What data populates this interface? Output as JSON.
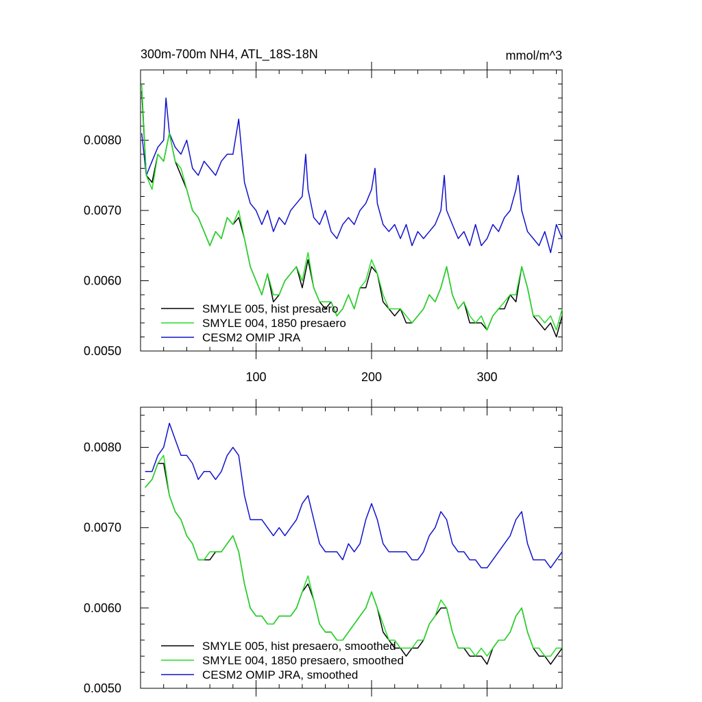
{
  "chart_data": [
    {
      "type": "line",
      "title": "300m-700m NH4, ATL_18S-18N",
      "units": "mmol/m^3",
      "xlim": [
        0,
        365
      ],
      "ylim": [
        0.005,
        0.009
      ],
      "xticks": [
        100,
        200,
        300
      ],
      "xtick_labels": [
        "100",
        "200",
        "300"
      ],
      "yticks": [
        0.005,
        0.006,
        0.007,
        0.008
      ],
      "ytick_labels": [
        "0.0050",
        "0.0060",
        "0.0070",
        "0.0080"
      ],
      "legend_position": "bottom-left",
      "series": [
        {
          "name": "SMYLE 005, hist presaero",
          "color": "#000000",
          "x": [
            1,
            5,
            10,
            15,
            20,
            25,
            30,
            35,
            40,
            45,
            50,
            55,
            60,
            65,
            70,
            75,
            80,
            85,
            90,
            95,
            100,
            105,
            110,
            115,
            120,
            125,
            130,
            135,
            140,
            145,
            150,
            155,
            160,
            165,
            170,
            175,
            180,
            185,
            190,
            195,
            200,
            205,
            210,
            215,
            220,
            225,
            230,
            235,
            240,
            245,
            250,
            255,
            260,
            265,
            270,
            275,
            280,
            285,
            290,
            295,
            300,
            305,
            310,
            315,
            320,
            325,
            330,
            335,
            340,
            345,
            350,
            355,
            360,
            365
          ],
          "values": [
            0.0087,
            0.0075,
            0.0074,
            0.0078,
            0.0077,
            0.0081,
            0.0077,
            0.0075,
            0.0073,
            0.007,
            0.0069,
            0.0067,
            0.0065,
            0.0067,
            0.0066,
            0.0069,
            0.0068,
            0.0069,
            0.0066,
            0.0062,
            0.006,
            0.0058,
            0.0061,
            0.0057,
            0.0058,
            0.006,
            0.0061,
            0.0062,
            0.0059,
            0.0063,
            0.0059,
            0.0057,
            0.0056,
            0.0057,
            0.0055,
            0.0056,
            0.0058,
            0.0056,
            0.0059,
            0.0059,
            0.0062,
            0.0061,
            0.0057,
            0.0056,
            0.0055,
            0.0056,
            0.0054,
            0.0054,
            0.0055,
            0.0056,
            0.0058,
            0.0057,
            0.0059,
            0.0062,
            0.0058,
            0.0056,
            0.0057,
            0.0054,
            0.0054,
            0.0054,
            0.0053,
            0.0055,
            0.0056,
            0.0056,
            0.0058,
            0.0057,
            0.0062,
            0.0059,
            0.0055,
            0.0054,
            0.0053,
            0.0054,
            0.0052,
            0.0055
          ]
        },
        {
          "name": "SMYLE 004, 1850 presaero",
          "color": "#22dd22",
          "x": [
            1,
            5,
            10,
            15,
            20,
            25,
            30,
            35,
            40,
            45,
            50,
            55,
            60,
            65,
            70,
            75,
            80,
            85,
            90,
            95,
            100,
            105,
            110,
            115,
            120,
            125,
            130,
            135,
            140,
            145,
            150,
            155,
            160,
            165,
            170,
            175,
            180,
            185,
            190,
            195,
            200,
            205,
            210,
            215,
            220,
            225,
            230,
            235,
            240,
            245,
            250,
            255,
            260,
            265,
            270,
            275,
            280,
            285,
            290,
            295,
            300,
            305,
            310,
            315,
            320,
            325,
            330,
            335,
            340,
            345,
            350,
            355,
            360,
            365
          ],
          "values": [
            0.0088,
            0.0075,
            0.0073,
            0.0078,
            0.0077,
            0.0081,
            0.0077,
            0.0076,
            0.0073,
            0.007,
            0.0069,
            0.0067,
            0.0065,
            0.0067,
            0.0066,
            0.0069,
            0.0068,
            0.007,
            0.0066,
            0.0062,
            0.006,
            0.0058,
            0.0061,
            0.0058,
            0.0058,
            0.006,
            0.0061,
            0.0062,
            0.006,
            0.0064,
            0.0059,
            0.0057,
            0.0057,
            0.0057,
            0.0055,
            0.0056,
            0.0058,
            0.0056,
            0.0059,
            0.006,
            0.0063,
            0.0061,
            0.0058,
            0.0056,
            0.0056,
            0.0056,
            0.0055,
            0.0054,
            0.0055,
            0.0056,
            0.0058,
            0.0057,
            0.0059,
            0.0062,
            0.0058,
            0.0056,
            0.0057,
            0.0055,
            0.0054,
            0.0055,
            0.0053,
            0.0055,
            0.0056,
            0.0057,
            0.0058,
            0.0058,
            0.0062,
            0.0059,
            0.0055,
            0.0055,
            0.0054,
            0.0055,
            0.0053,
            0.0056
          ]
        },
        {
          "name": "CESM2 OMIP JRA",
          "color": "#1111cc",
          "x": [
            1,
            5,
            10,
            15,
            20,
            22,
            25,
            30,
            35,
            40,
            45,
            50,
            55,
            60,
            65,
            70,
            75,
            80,
            85,
            90,
            95,
            100,
            105,
            110,
            115,
            120,
            125,
            130,
            135,
            140,
            143,
            145,
            150,
            155,
            160,
            165,
            170,
            175,
            180,
            185,
            190,
            195,
            200,
            203,
            205,
            210,
            215,
            220,
            225,
            230,
            235,
            240,
            245,
            250,
            255,
            260,
            263,
            265,
            270,
            275,
            280,
            285,
            290,
            295,
            300,
            305,
            310,
            315,
            320,
            325,
            327,
            330,
            335,
            340,
            345,
            350,
            355,
            360,
            365
          ],
          "values": [
            0.0081,
            0.0075,
            0.0077,
            0.0079,
            0.008,
            0.0086,
            0.0081,
            0.0079,
            0.0078,
            0.008,
            0.0076,
            0.0075,
            0.0077,
            0.0076,
            0.0075,
            0.0077,
            0.0078,
            0.0078,
            0.0083,
            0.0074,
            0.0071,
            0.007,
            0.0068,
            0.007,
            0.0067,
            0.0069,
            0.0068,
            0.007,
            0.0071,
            0.0072,
            0.0078,
            0.0073,
            0.0069,
            0.0068,
            0.007,
            0.0067,
            0.0066,
            0.0068,
            0.0069,
            0.0068,
            0.007,
            0.0071,
            0.0073,
            0.0076,
            0.0071,
            0.0068,
            0.0067,
            0.0068,
            0.0066,
            0.0068,
            0.0065,
            0.0067,
            0.0066,
            0.0067,
            0.0068,
            0.007,
            0.0075,
            0.007,
            0.0068,
            0.0066,
            0.0067,
            0.0065,
            0.0068,
            0.0065,
            0.0066,
            0.0068,
            0.0067,
            0.0069,
            0.007,
            0.0073,
            0.0075,
            0.007,
            0.0067,
            0.0066,
            0.0065,
            0.0067,
            0.0064,
            0.0068,
            0.0066
          ]
        }
      ]
    },
    {
      "type": "line",
      "xlim": [
        0,
        365
      ],
      "ylim": [
        0.005,
        0.0085
      ],
      "xticks": [
        100,
        200,
        300
      ],
      "yticks": [
        0.005,
        0.006,
        0.007,
        0.008
      ],
      "ytick_labels": [
        "0.0050",
        "0.0060",
        "0.0070",
        "0.0080"
      ],
      "legend_position": "bottom-left",
      "series": [
        {
          "name": "SMYLE 005, hist presaero, smoothed",
          "color": "#000000",
          "x": [
            4,
            10,
            15,
            20,
            25,
            30,
            35,
            40,
            45,
            50,
            55,
            60,
            65,
            70,
            75,
            80,
            85,
            90,
            95,
            100,
            105,
            110,
            115,
            120,
            125,
            130,
            135,
            140,
            145,
            150,
            155,
            160,
            165,
            170,
            175,
            180,
            185,
            190,
            195,
            200,
            205,
            210,
            215,
            220,
            225,
            230,
            235,
            240,
            245,
            250,
            255,
            260,
            265,
            270,
            275,
            280,
            285,
            290,
            295,
            300,
            305,
            310,
            315,
            320,
            325,
            330,
            335,
            340,
            345,
            350,
            355,
            360,
            365
          ],
          "values": [
            0.0075,
            0.0076,
            0.0078,
            0.0078,
            0.0074,
            0.0072,
            0.0071,
            0.0069,
            0.0068,
            0.0066,
            0.0066,
            0.0066,
            0.0067,
            0.0067,
            0.0068,
            0.0069,
            0.0067,
            0.0063,
            0.006,
            0.0059,
            0.0059,
            0.0058,
            0.0058,
            0.0059,
            0.0059,
            0.0059,
            0.006,
            0.0062,
            0.0063,
            0.0061,
            0.0058,
            0.0057,
            0.0057,
            0.0056,
            0.0056,
            0.0057,
            0.0058,
            0.0059,
            0.006,
            0.0062,
            0.006,
            0.0057,
            0.0056,
            0.0055,
            0.0055,
            0.0054,
            0.0055,
            0.0055,
            0.0056,
            0.0058,
            0.0059,
            0.006,
            0.006,
            0.0057,
            0.0055,
            0.0055,
            0.0054,
            0.0054,
            0.0054,
            0.0053,
            0.0055,
            0.0056,
            0.0056,
            0.0057,
            0.0059,
            0.006,
            0.0057,
            0.0055,
            0.0054,
            0.0054,
            0.0053,
            0.0054,
            0.0055
          ]
        },
        {
          "name": "SMYLE 004, 1850 presaero, smoothed",
          "color": "#22dd22",
          "x": [
            4,
            10,
            15,
            20,
            25,
            30,
            35,
            40,
            45,
            50,
            55,
            60,
            65,
            70,
            75,
            80,
            85,
            90,
            95,
            100,
            105,
            110,
            115,
            120,
            125,
            130,
            135,
            140,
            145,
            150,
            155,
            160,
            165,
            170,
            175,
            180,
            185,
            190,
            195,
            200,
            205,
            210,
            215,
            220,
            225,
            230,
            235,
            240,
            245,
            250,
            255,
            260,
            265,
            270,
            275,
            280,
            285,
            290,
            295,
            300,
            305,
            310,
            315,
            320,
            325,
            330,
            335,
            340,
            345,
            350,
            355,
            360,
            365
          ],
          "values": [
            0.0075,
            0.0076,
            0.0078,
            0.0079,
            0.0074,
            0.0072,
            0.0071,
            0.0069,
            0.0068,
            0.0066,
            0.0066,
            0.0067,
            0.0067,
            0.0067,
            0.0068,
            0.0069,
            0.0067,
            0.0063,
            0.006,
            0.0059,
            0.0059,
            0.0058,
            0.0058,
            0.0059,
            0.0059,
            0.0059,
            0.006,
            0.0062,
            0.0064,
            0.0061,
            0.0058,
            0.0057,
            0.0057,
            0.0056,
            0.0056,
            0.0057,
            0.0058,
            0.0059,
            0.006,
            0.0062,
            0.006,
            0.0058,
            0.0056,
            0.0056,
            0.0055,
            0.0055,
            0.0055,
            0.0056,
            0.0056,
            0.0058,
            0.0059,
            0.0061,
            0.006,
            0.0057,
            0.0055,
            0.0055,
            0.0055,
            0.0054,
            0.0055,
            0.0054,
            0.0055,
            0.0056,
            0.0056,
            0.0057,
            0.0059,
            0.006,
            0.0057,
            0.0055,
            0.0055,
            0.0054,
            0.0054,
            0.0055,
            0.0055
          ]
        },
        {
          "name": "CESM2 OMIP JRA, smoothed",
          "color": "#1111cc",
          "x": [
            4,
            10,
            15,
            20,
            25,
            30,
            35,
            40,
            45,
            50,
            55,
            60,
            65,
            70,
            75,
            80,
            85,
            90,
            95,
            100,
            105,
            110,
            115,
            120,
            125,
            130,
            135,
            140,
            145,
            150,
            155,
            160,
            165,
            170,
            175,
            180,
            185,
            190,
            195,
            200,
            205,
            210,
            215,
            220,
            225,
            230,
            235,
            240,
            245,
            250,
            255,
            260,
            265,
            270,
            275,
            280,
            285,
            290,
            295,
            300,
            305,
            310,
            315,
            320,
            325,
            330,
            335,
            340,
            345,
            350,
            355,
            360,
            365
          ],
          "values": [
            0.0077,
            0.0077,
            0.0079,
            0.008,
            0.0083,
            0.0081,
            0.0079,
            0.0079,
            0.0078,
            0.0076,
            0.0077,
            0.0077,
            0.0076,
            0.0077,
            0.0079,
            0.008,
            0.0079,
            0.0074,
            0.0071,
            0.0071,
            0.0071,
            0.007,
            0.0069,
            0.007,
            0.0069,
            0.007,
            0.0071,
            0.0073,
            0.0074,
            0.0071,
            0.0068,
            0.0067,
            0.0067,
            0.0067,
            0.0066,
            0.0068,
            0.0067,
            0.0068,
            0.0071,
            0.0073,
            0.0071,
            0.0068,
            0.0067,
            0.0067,
            0.0067,
            0.0067,
            0.0066,
            0.0066,
            0.0067,
            0.0069,
            0.007,
            0.0072,
            0.0071,
            0.0068,
            0.0067,
            0.0067,
            0.0066,
            0.0066,
            0.0065,
            0.0065,
            0.0066,
            0.0067,
            0.0068,
            0.0069,
            0.0071,
            0.0072,
            0.0068,
            0.0066,
            0.0066,
            0.0066,
            0.0065,
            0.0066,
            0.0067
          ]
        }
      ]
    }
  ]
}
